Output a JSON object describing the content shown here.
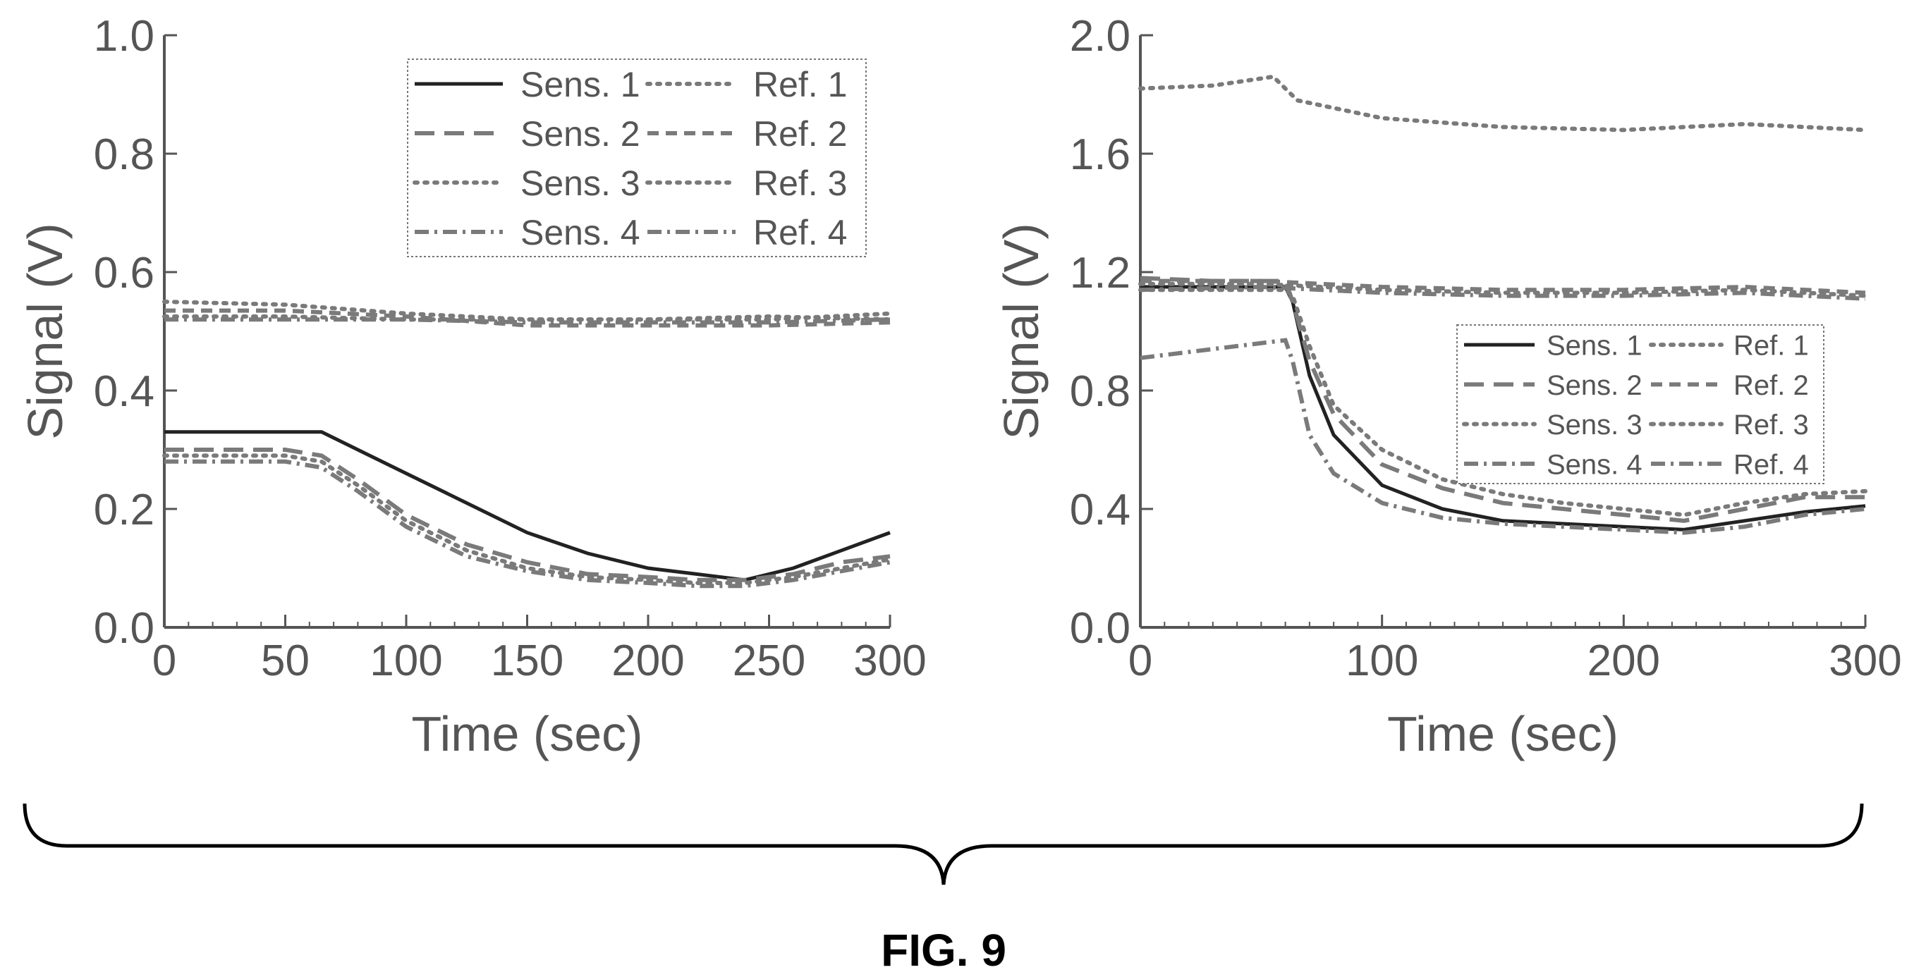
{
  "figure": {
    "caption": "FIG. 9"
  },
  "colors": {
    "sens1": "#222222",
    "other": "#7a7a7a",
    "axis": "#555555"
  },
  "chart_data": [
    {
      "type": "line",
      "title": "",
      "xlabel": "Time (sec)",
      "ylabel": "Signal (V)",
      "xlim": [
        0,
        300
      ],
      "ylim": [
        0,
        1.0
      ],
      "xticks": [
        0,
        50,
        100,
        150,
        200,
        250,
        300
      ],
      "xtick_labels": [
        "0",
        "50",
        "100",
        "150",
        "200",
        "250",
        "300"
      ],
      "yticks": [
        0,
        0.2,
        0.4,
        0.6,
        0.8,
        1.0
      ],
      "ytick_labels": [
        "0.0",
        "0.2",
        "0.4",
        "0.6",
        "0.8",
        "1.0"
      ],
      "grid": false,
      "legend_position": "top-right",
      "legend_columns": 2,
      "legend_order": [
        "Sens. 1",
        "Ref. 1",
        "Sens. 2",
        "Ref. 2",
        "Sens. 3",
        "Ref. 3",
        "Sens. 4",
        "Ref. 4"
      ],
      "series": [
        {
          "name": "Sens. 1",
          "style": "solid",
          "x": [
            0,
            25,
            50,
            65,
            80,
            100,
            125,
            150,
            175,
            200,
            220,
            240,
            260,
            280,
            300
          ],
          "y": [
            0.33,
            0.33,
            0.33,
            0.33,
            0.3,
            0.26,
            0.21,
            0.16,
            0.125,
            0.1,
            0.09,
            0.08,
            0.1,
            0.13,
            0.16
          ]
        },
        {
          "name": "Sens. 2",
          "style": "longdash",
          "x": [
            0,
            25,
            50,
            65,
            80,
            100,
            125,
            150,
            175,
            200,
            220,
            240,
            260,
            280,
            300
          ],
          "y": [
            0.3,
            0.3,
            0.3,
            0.29,
            0.25,
            0.19,
            0.14,
            0.11,
            0.09,
            0.085,
            0.08,
            0.08,
            0.09,
            0.11,
            0.12
          ]
        },
        {
          "name": "Sens. 3",
          "style": "dot",
          "x": [
            0,
            25,
            50,
            65,
            80,
            100,
            125,
            150,
            175,
            200,
            220,
            240,
            260,
            280,
            300
          ],
          "y": [
            0.29,
            0.29,
            0.29,
            0.28,
            0.24,
            0.18,
            0.13,
            0.1,
            0.085,
            0.08,
            0.075,
            0.075,
            0.085,
            0.1,
            0.115
          ]
        },
        {
          "name": "Sens. 4",
          "style": "dashdot",
          "x": [
            0,
            25,
            50,
            65,
            80,
            100,
            125,
            150,
            175,
            200,
            220,
            240,
            260,
            280,
            300
          ],
          "y": [
            0.28,
            0.28,
            0.28,
            0.27,
            0.23,
            0.17,
            0.12,
            0.095,
            0.08,
            0.075,
            0.07,
            0.07,
            0.08,
            0.095,
            0.11
          ]
        },
        {
          "name": "Ref. 1",
          "style": "dot",
          "x": [
            0,
            50,
            100,
            150,
            200,
            250,
            300
          ],
          "y": [
            0.55,
            0.545,
            0.53,
            0.52,
            0.52,
            0.52,
            0.53
          ]
        },
        {
          "name": "Ref. 2",
          "style": "dash",
          "x": [
            0,
            50,
            100,
            150,
            200,
            250,
            300
          ],
          "y": [
            0.535,
            0.535,
            0.525,
            0.51,
            0.51,
            0.51,
            0.515
          ]
        },
        {
          "name": "Ref. 3",
          "style": "dot",
          "x": [
            0,
            50,
            100,
            150,
            200,
            250,
            300
          ],
          "y": [
            0.525,
            0.525,
            0.52,
            0.52,
            0.52,
            0.525,
            0.52
          ]
        },
        {
          "name": "Ref. 4",
          "style": "dashdot",
          "x": [
            0,
            50,
            100,
            150,
            200,
            250,
            300
          ],
          "y": [
            0.52,
            0.52,
            0.52,
            0.515,
            0.515,
            0.515,
            0.52
          ]
        }
      ]
    },
    {
      "type": "line",
      "title": "",
      "xlabel": "Time (sec)",
      "ylabel": "Signal (V)",
      "xlim": [
        0,
        300
      ],
      "ylim": [
        0,
        2.0
      ],
      "xticks": [
        0,
        100,
        200,
        300
      ],
      "xtick_labels": [
        "0",
        "100",
        "200",
        "300"
      ],
      "yticks": [
        0,
        0.4,
        0.8,
        1.2,
        1.6,
        2.0
      ],
      "ytick_labels": [
        "0.0",
        "0.4",
        "0.8",
        "1.2",
        "1.6",
        "2.0"
      ],
      "grid": false,
      "legend_position": "center-right",
      "legend_columns": 2,
      "legend_order": [
        "Sens. 1",
        "Ref. 1",
        "Sens. 2",
        "Ref. 2",
        "Sens. 3",
        "Ref. 3",
        "Sens. 4",
        "Ref. 4"
      ],
      "series": [
        {
          "name": "Sens. 1",
          "style": "solid",
          "x": [
            0,
            30,
            60,
            63,
            70,
            80,
            100,
            125,
            150,
            175,
            200,
            225,
            250,
            275,
            300
          ],
          "y": [
            1.15,
            1.15,
            1.15,
            1.1,
            0.85,
            0.65,
            0.48,
            0.4,
            0.36,
            0.35,
            0.34,
            0.33,
            0.36,
            0.39,
            0.41
          ]
        },
        {
          "name": "Sens. 2",
          "style": "longdash",
          "x": [
            0,
            30,
            60,
            63,
            70,
            80,
            100,
            125,
            150,
            175,
            200,
            225,
            250,
            275,
            300
          ],
          "y": [
            1.18,
            1.17,
            1.17,
            1.1,
            0.9,
            0.72,
            0.55,
            0.47,
            0.42,
            0.4,
            0.38,
            0.36,
            0.4,
            0.44,
            0.44
          ]
        },
        {
          "name": "Sens. 3",
          "style": "dot",
          "x": [
            0,
            30,
            60,
            63,
            70,
            80,
            100,
            125,
            150,
            175,
            200,
            225,
            250,
            275,
            300
          ],
          "y": [
            1.14,
            1.14,
            1.14,
            1.12,
            0.95,
            0.75,
            0.6,
            0.5,
            0.45,
            0.42,
            0.4,
            0.38,
            0.42,
            0.45,
            0.46
          ]
        },
        {
          "name": "Sens. 4",
          "style": "dashdot",
          "x": [
            0,
            30,
            60,
            63,
            70,
            80,
            100,
            125,
            150,
            175,
            200,
            225,
            250,
            275,
            300
          ],
          "y": [
            0.91,
            0.94,
            0.97,
            0.9,
            0.65,
            0.52,
            0.42,
            0.37,
            0.35,
            0.34,
            0.33,
            0.32,
            0.34,
            0.38,
            0.4
          ]
        },
        {
          "name": "Ref. 1",
          "style": "dot",
          "x": [
            0,
            30,
            55,
            65,
            100,
            150,
            200,
            250,
            300
          ],
          "y": [
            1.82,
            1.83,
            1.86,
            1.78,
            1.72,
            1.69,
            1.68,
            1.7,
            1.68
          ]
        },
        {
          "name": "Ref. 2",
          "style": "dash",
          "x": [
            0,
            50,
            100,
            150,
            200,
            250,
            300
          ],
          "y": [
            1.17,
            1.17,
            1.15,
            1.14,
            1.14,
            1.15,
            1.13
          ]
        },
        {
          "name": "Ref. 3",
          "style": "dot",
          "x": [
            0,
            50,
            100,
            150,
            200,
            250,
            300
          ],
          "y": [
            1.16,
            1.16,
            1.14,
            1.13,
            1.13,
            1.14,
            1.12
          ]
        },
        {
          "name": "Ref. 4",
          "style": "dashdot",
          "x": [
            0,
            50,
            100,
            150,
            200,
            250,
            300
          ],
          "y": [
            1.14,
            1.15,
            1.13,
            1.12,
            1.12,
            1.13,
            1.11
          ]
        }
      ]
    }
  ]
}
